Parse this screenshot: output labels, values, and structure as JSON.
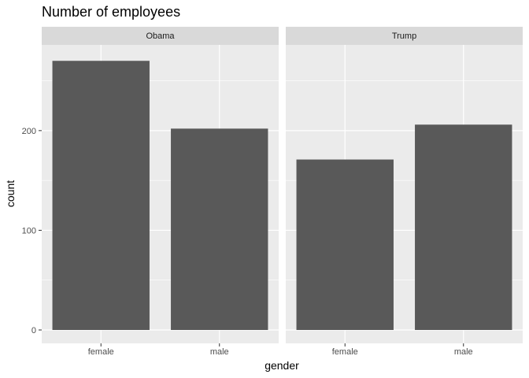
{
  "chart_data": {
    "type": "bar",
    "title": "Number of employees",
    "xlabel": "gender",
    "ylabel": "count",
    "categories": [
      "female",
      "male"
    ],
    "ylim": [
      0,
      286
    ],
    "yticks": [
      0,
      100,
      200
    ],
    "facets": [
      {
        "name": "Obama",
        "values": [
          270,
          202
        ]
      },
      {
        "name": "Trump",
        "values": [
          171,
          206
        ]
      }
    ],
    "grid": true,
    "legend": "none"
  },
  "colors": {
    "panel": "#ebebeb",
    "strip": "#d9d9d9",
    "bar": "#595959",
    "grid_major": "#ffffff",
    "tick": "#333333"
  }
}
